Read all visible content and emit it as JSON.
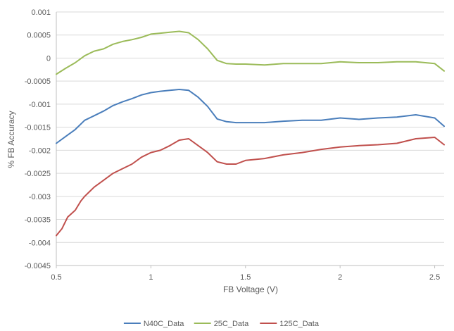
{
  "chart_data": {
    "type": "line",
    "title": "",
    "xlabel": "FB Voltage (V)",
    "ylabel": "% FB Accuracy",
    "xlim": [
      0.5,
      2.55
    ],
    "ylim": [
      -0.0045,
      0.001
    ],
    "x_ticks": [
      0.5,
      1,
      1.5,
      2,
      2.5
    ],
    "x_tick_labels": [
      "0.5",
      "1",
      "1.5",
      "2",
      "2.5"
    ],
    "y_ticks": [
      0.001,
      0.0005,
      0,
      -0.0005,
      -0.001,
      -0.0015,
      -0.002,
      -0.0025,
      -0.003,
      -0.0035,
      -0.004,
      -0.0045
    ],
    "y_tick_labels": [
      "0.001",
      "0.0005",
      "0",
      "-0.0005",
      "-0.001",
      "-0.0015",
      "-0.002",
      "-0.0025",
      "-0.003",
      "-0.0035",
      "-0.004",
      "-0.0045"
    ],
    "grid": "horizontal",
    "legend_position": "bottom",
    "series": [
      {
        "name": "N40C_Data",
        "color": "#4a7ebb",
        "x": [
          0.5,
          0.55,
          0.6,
          0.65,
          0.7,
          0.75,
          0.8,
          0.85,
          0.9,
          0.95,
          1.0,
          1.05,
          1.1,
          1.15,
          1.2,
          1.25,
          1.3,
          1.35,
          1.4,
          1.45,
          1.5,
          1.6,
          1.7,
          1.8,
          1.9,
          2.0,
          2.1,
          2.2,
          2.3,
          2.4,
          2.5,
          2.55
        ],
        "y": [
          -0.00185,
          -0.0017,
          -0.00155,
          -0.00135,
          -0.00125,
          -0.00115,
          -0.00103,
          -0.00095,
          -0.00088,
          -0.0008,
          -0.00075,
          -0.00072,
          -0.0007,
          -0.00068,
          -0.0007,
          -0.00085,
          -0.00105,
          -0.00132,
          -0.00138,
          -0.0014,
          -0.0014,
          -0.0014,
          -0.00137,
          -0.00135,
          -0.00135,
          -0.0013,
          -0.00133,
          -0.0013,
          -0.00128,
          -0.00123,
          -0.0013,
          -0.00148
        ]
      },
      {
        "name": "25C_Data",
        "color": "#9bbb59",
        "x": [
          0.5,
          0.55,
          0.6,
          0.65,
          0.7,
          0.75,
          0.8,
          0.85,
          0.9,
          0.95,
          1.0,
          1.05,
          1.1,
          1.15,
          1.2,
          1.25,
          1.3,
          1.35,
          1.4,
          1.45,
          1.5,
          1.6,
          1.7,
          1.8,
          1.9,
          2.0,
          2.1,
          2.2,
          2.3,
          2.4,
          2.5,
          2.55
        ],
        "y": [
          -0.00035,
          -0.00022,
          -0.0001,
          5e-05,
          0.00015,
          0.0002,
          0.0003,
          0.00036,
          0.0004,
          0.00045,
          0.00052,
          0.00054,
          0.00056,
          0.00058,
          0.00055,
          0.0004,
          0.0002,
          -5e-05,
          -0.00012,
          -0.00013,
          -0.00013,
          -0.00015,
          -0.00012,
          -0.00012,
          -0.00012,
          -8e-05,
          -0.0001,
          -0.0001,
          -8e-05,
          -8e-05,
          -0.00012,
          -0.00028
        ]
      },
      {
        "name": "125C_Data",
        "color": "#c0504d",
        "x": [
          0.5,
          0.53,
          0.56,
          0.6,
          0.63,
          0.65,
          0.7,
          0.75,
          0.8,
          0.85,
          0.9,
          0.95,
          1.0,
          1.05,
          1.1,
          1.15,
          1.2,
          1.25,
          1.3,
          1.35,
          1.4,
          1.45,
          1.5,
          1.6,
          1.7,
          1.8,
          1.9,
          2.0,
          2.1,
          2.2,
          2.3,
          2.4,
          2.5,
          2.55
        ],
        "y": [
          -0.00385,
          -0.0037,
          -0.00345,
          -0.0033,
          -0.0031,
          -0.003,
          -0.0028,
          -0.00265,
          -0.0025,
          -0.0024,
          -0.0023,
          -0.00215,
          -0.00205,
          -0.002,
          -0.0019,
          -0.00178,
          -0.00175,
          -0.0019,
          -0.00205,
          -0.00225,
          -0.0023,
          -0.0023,
          -0.00222,
          -0.00218,
          -0.0021,
          -0.00205,
          -0.00198,
          -0.00193,
          -0.0019,
          -0.00188,
          -0.00185,
          -0.00175,
          -0.00172,
          -0.00188
        ]
      }
    ]
  }
}
